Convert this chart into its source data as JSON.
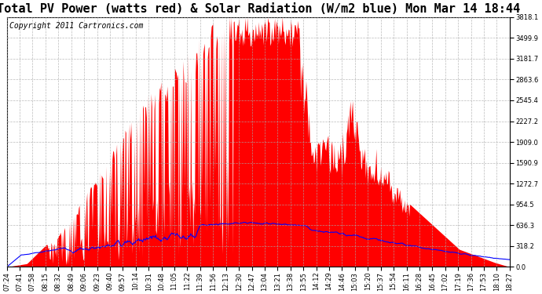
{
  "title": "Total PV Power (watts red) & Solar Radiation (W/m2 blue) Mon Mar 14 18:44",
  "copyright_text": "Copyright 2011 Cartronics.com",
  "background_color": "#ffffff",
  "plot_background_color": "#ffffff",
  "grid_color": "#aaaaaa",
  "red_fill_color": "#ff0000",
  "blue_line_color": "#0000ff",
  "y_max": 3818.1,
  "y_min": 0.0,
  "y_ticks": [
    0.0,
    318.2,
    636.3,
    954.5,
    1272.7,
    1590.9,
    1909.0,
    2227.2,
    2545.4,
    2863.6,
    3181.7,
    3499.9,
    3818.1
  ],
  "x_labels": [
    "07:24",
    "07:41",
    "07:58",
    "08:15",
    "08:32",
    "08:49",
    "09:06",
    "09:23",
    "09:40",
    "09:57",
    "10:14",
    "10:31",
    "10:48",
    "11:05",
    "11:22",
    "11:39",
    "11:56",
    "12:13",
    "12:30",
    "12:47",
    "13:04",
    "13:21",
    "13:38",
    "13:55",
    "14:12",
    "14:29",
    "14:46",
    "15:03",
    "15:20",
    "15:37",
    "15:54",
    "16:11",
    "16:28",
    "16:45",
    "17:02",
    "17:19",
    "17:36",
    "17:53",
    "18:10",
    "18:27"
  ],
  "title_fontsize": 11,
  "copyright_fontsize": 7,
  "tick_fontsize": 6
}
